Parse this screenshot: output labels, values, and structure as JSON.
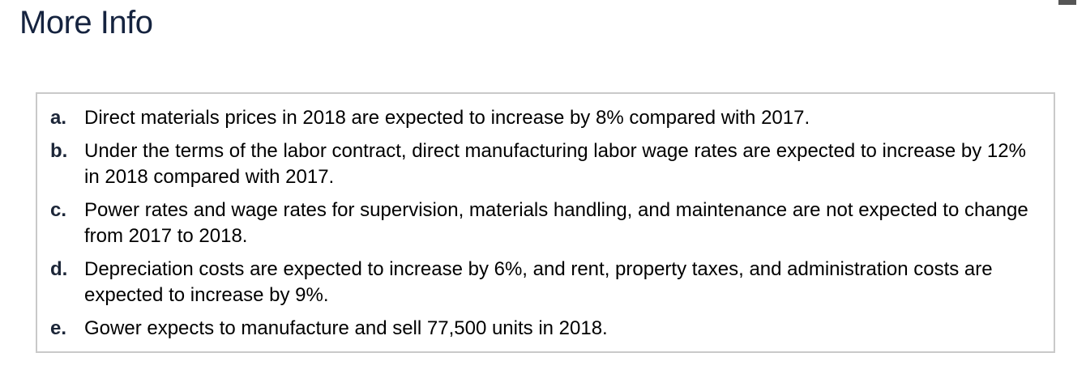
{
  "title": "More Info",
  "items": [
    {
      "letter": "a.",
      "text": "Direct materials prices in 2018 are expected to increase by 8% compared with 2017."
    },
    {
      "letter": "b.",
      "text": "Under the terms of the labor contract, direct manufacturing labor wage rates are expected to increase by 12% in 2018 compared with 2017."
    },
    {
      "letter": "c.",
      "text": "Power rates and wage rates for supervision, materials handling, and maintenance are not expected to change from 2017 to 2018."
    },
    {
      "letter": "d.",
      "text": "Depreciation costs are expected to increase by 6%, and rent, property taxes, and administration costs are expected to increase by 9%."
    },
    {
      "letter": "e.",
      "text": "Gower expects to manufacture and sell 77,500 units in 2018."
    }
  ]
}
